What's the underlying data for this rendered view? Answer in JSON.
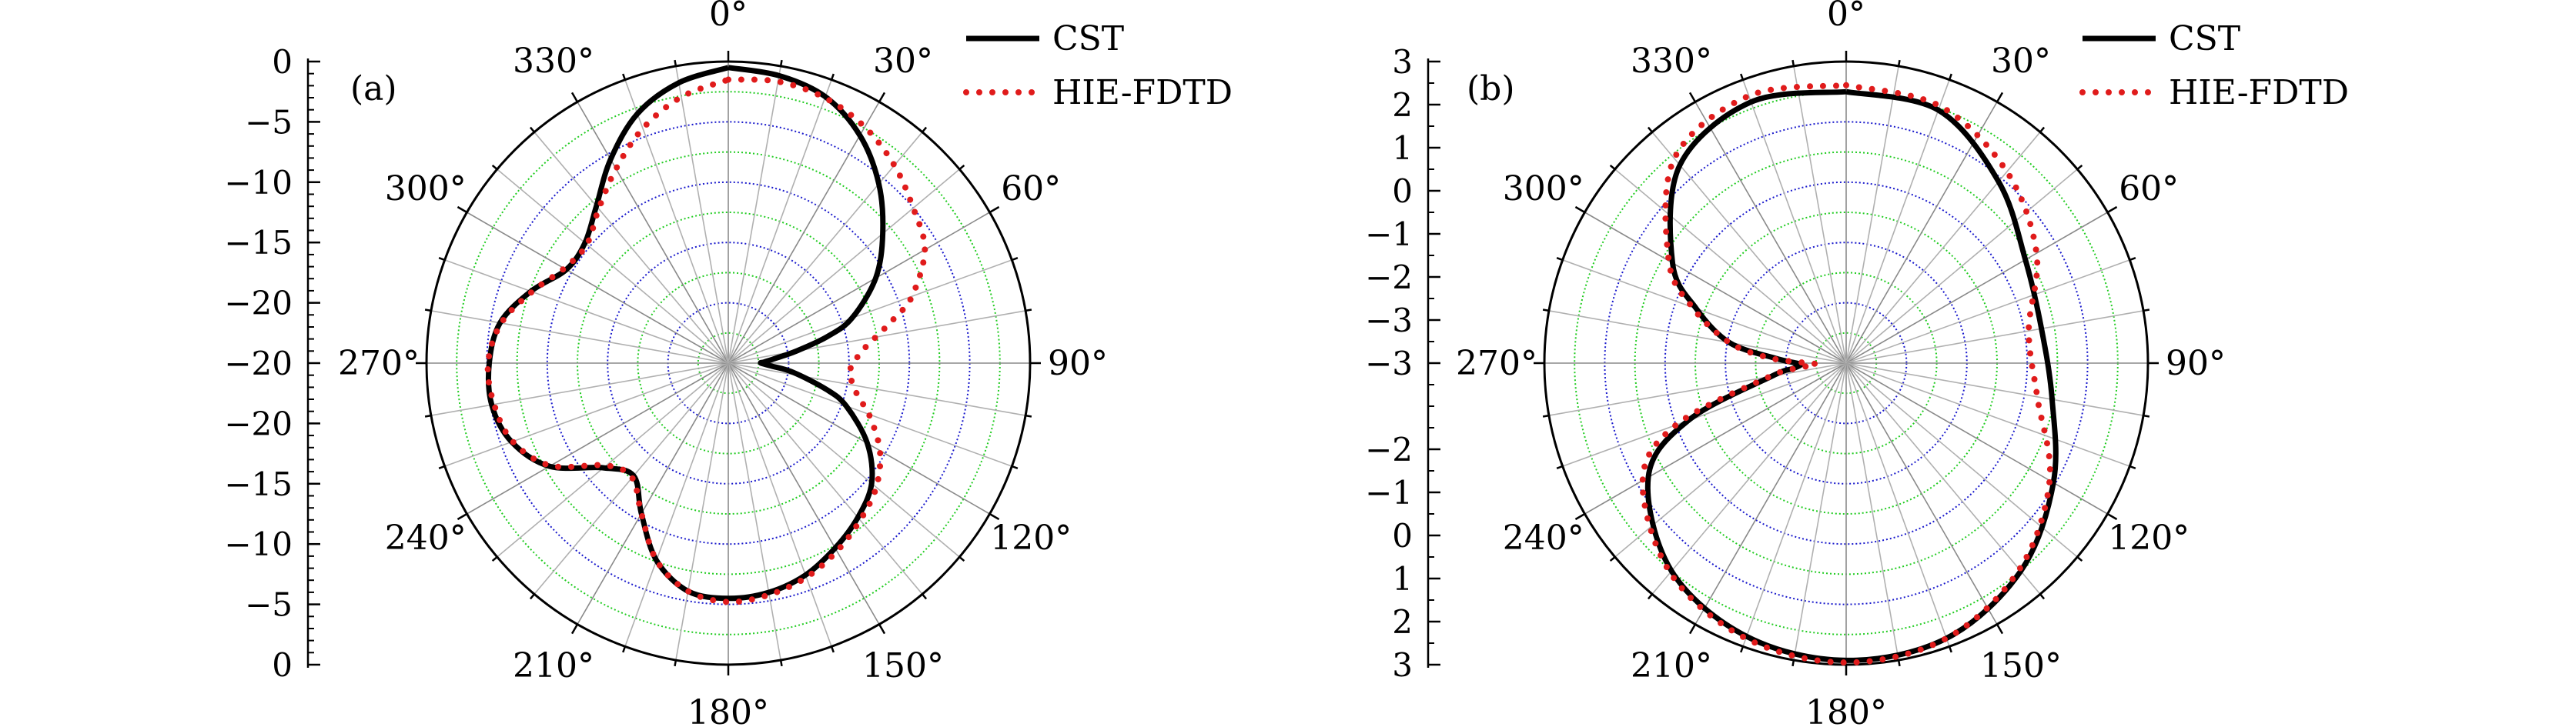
{
  "figure": {
    "colors": {
      "grid_blue": "#1a1acc",
      "grid_green": "#22cc22",
      "spoke": "#b0b0b0",
      "cst": "#000000",
      "hie": "#e01b1b"
    },
    "legend": {
      "cst_label": "CST",
      "hie_label": "HIE-FDTD",
      "placement": "top-right of each panel"
    }
  },
  "chart_data": [
    {
      "type": "polar",
      "panel_label": "(a)",
      "angle_labels": [
        "0°",
        "30°",
        "60°",
        "90°",
        "120°",
        "150°",
        "180°",
        "210°",
        "240°",
        "270°",
        "300°",
        "330°"
      ],
      "r_axis": {
        "min": -25,
        "max": 0,
        "ticks": [
          0,
          -5,
          -10,
          -15,
          -20,
          -25
        ],
        "tick_labels_upper": [
          "0",
          "−5",
          "−10",
          "−15",
          "−20"
        ],
        "tick_labels_lower": [
          "−20",
          "−15",
          "−10",
          "−5",
          "0"
        ],
        "axis_center_label": "−20"
      },
      "grid": true,
      "series": [
        {
          "name": "CST",
          "style": "solid",
          "theta": [
            0,
            10,
            20,
            30,
            40,
            50,
            60,
            70,
            75,
            80,
            84,
            88,
            90,
            94,
            98,
            105,
            110,
            120,
            130,
            140,
            150,
            160,
            170,
            180,
            190,
            200,
            210,
            220,
            230,
            240,
            250,
            260,
            270,
            280,
            290,
            300,
            310,
            320,
            330,
            340,
            350,
            360
          ],
          "r": [
            -0.5,
            -0.8,
            -1.5,
            -3.2,
            -5.6,
            -8.3,
            -10.9,
            -14.1,
            -16.5,
            -19.3,
            -21.0,
            -22.0,
            -22.3,
            -21.4,
            -19.6,
            -16.6,
            -14.6,
            -11.7,
            -9.5,
            -8.3,
            -7.3,
            -6.3,
            -5.7,
            -5.5,
            -5.8,
            -7.6,
            -10.6,
            -12.8,
            -11.5,
            -7.9,
            -5.9,
            -5.1,
            -5.2,
            -5.8,
            -7.6,
            -9.5,
            -9.5,
            -8.0,
            -5.5,
            -3.0,
            -1.4,
            -0.5
          ]
        },
        {
          "name": "HIE-FDTD",
          "style": "dotted",
          "theta": [
            0,
            10,
            20,
            30,
            40,
            50,
            60,
            70,
            75,
            80,
            84,
            88,
            90,
            94,
            98,
            105,
            110,
            120,
            130,
            140,
            150,
            160,
            170,
            180,
            190,
            200,
            210,
            220,
            230,
            240,
            250,
            260,
            270,
            280,
            290,
            300,
            310,
            320,
            330,
            340,
            350,
            360
          ],
          "r": [
            -1.5,
            -1.3,
            -1.6,
            -2.4,
            -3.6,
            -5.0,
            -6.2,
            -8.8,
            -10.8,
            -12.6,
            -13.7,
            -14.4,
            -14.7,
            -14.9,
            -14.7,
            -13.8,
            -12.6,
            -10.5,
            -9.0,
            -8.0,
            -7.0,
            -6.1,
            -5.5,
            -5.2,
            -5.8,
            -7.6,
            -10.6,
            -12.6,
            -11.8,
            -8.0,
            -6.0,
            -5.3,
            -5.1,
            -5.9,
            -7.7,
            -9.3,
            -9.7,
            -8.3,
            -6.4,
            -4.3,
            -2.6,
            -1.5
          ]
        }
      ]
    },
    {
      "type": "polar",
      "panel_label": "(b)",
      "angle_labels": [
        "0°",
        "30°",
        "60°",
        "90°",
        "120°",
        "150°",
        "180°",
        "210°",
        "240°",
        "270°",
        "300°",
        "330°"
      ],
      "r_axis": {
        "min": -4,
        "max": 3,
        "ticks": [
          3,
          2,
          1,
          0,
          -1,
          -2,
          -3,
          -4
        ],
        "tick_labels_upper": [
          "3",
          "2",
          "1",
          "0",
          "−1",
          "−2",
          "−3"
        ],
        "tick_labels_lower": [
          "−2",
          "−1",
          "0",
          "1",
          "2",
          "3"
        ],
        "axis_center_label": "−3"
      },
      "grid": true,
      "series": [
        {
          "name": "CST",
          "style": "solid",
          "theta": [
            0,
            20,
            40,
            60,
            80,
            100,
            120,
            140,
            160,
            180,
            200,
            220,
            240,
            250,
            260,
            264,
            268,
            270,
            274,
            280,
            290,
            300,
            320,
            340,
            360
          ],
          "r": [
            2.3,
            2.25,
            1.5,
            0.8,
            0.6,
            0.85,
            1.55,
            2.3,
            2.8,
            2.9,
            2.75,
            2.3,
            1.3,
            -0.1,
            -2.25,
            -2.75,
            -2.95,
            -2.85,
            -2.35,
            -1.25,
            -0.3,
            0.65,
            2.0,
            2.45,
            2.3
          ]
        },
        {
          "name": "HIE-FDTD",
          "style": "dotted",
          "theta": [
            0,
            20,
            40,
            60,
            80,
            100,
            120,
            140,
            160,
            180,
            200,
            220,
            240,
            250,
            260,
            264,
            268,
            270,
            274,
            280,
            290,
            300,
            320,
            340,
            360
          ],
          "r": [
            2.45,
            2.35,
            1.8,
            1.1,
            0.3,
            0.5,
            1.45,
            2.25,
            2.8,
            2.95,
            2.8,
            2.35,
            1.45,
            0.2,
            -2.2,
            -2.9,
            -3.3,
            -3.1,
            -2.2,
            -1.25,
            -0.2,
            0.75,
            2.2,
            2.6,
            2.45
          ]
        }
      ]
    }
  ]
}
